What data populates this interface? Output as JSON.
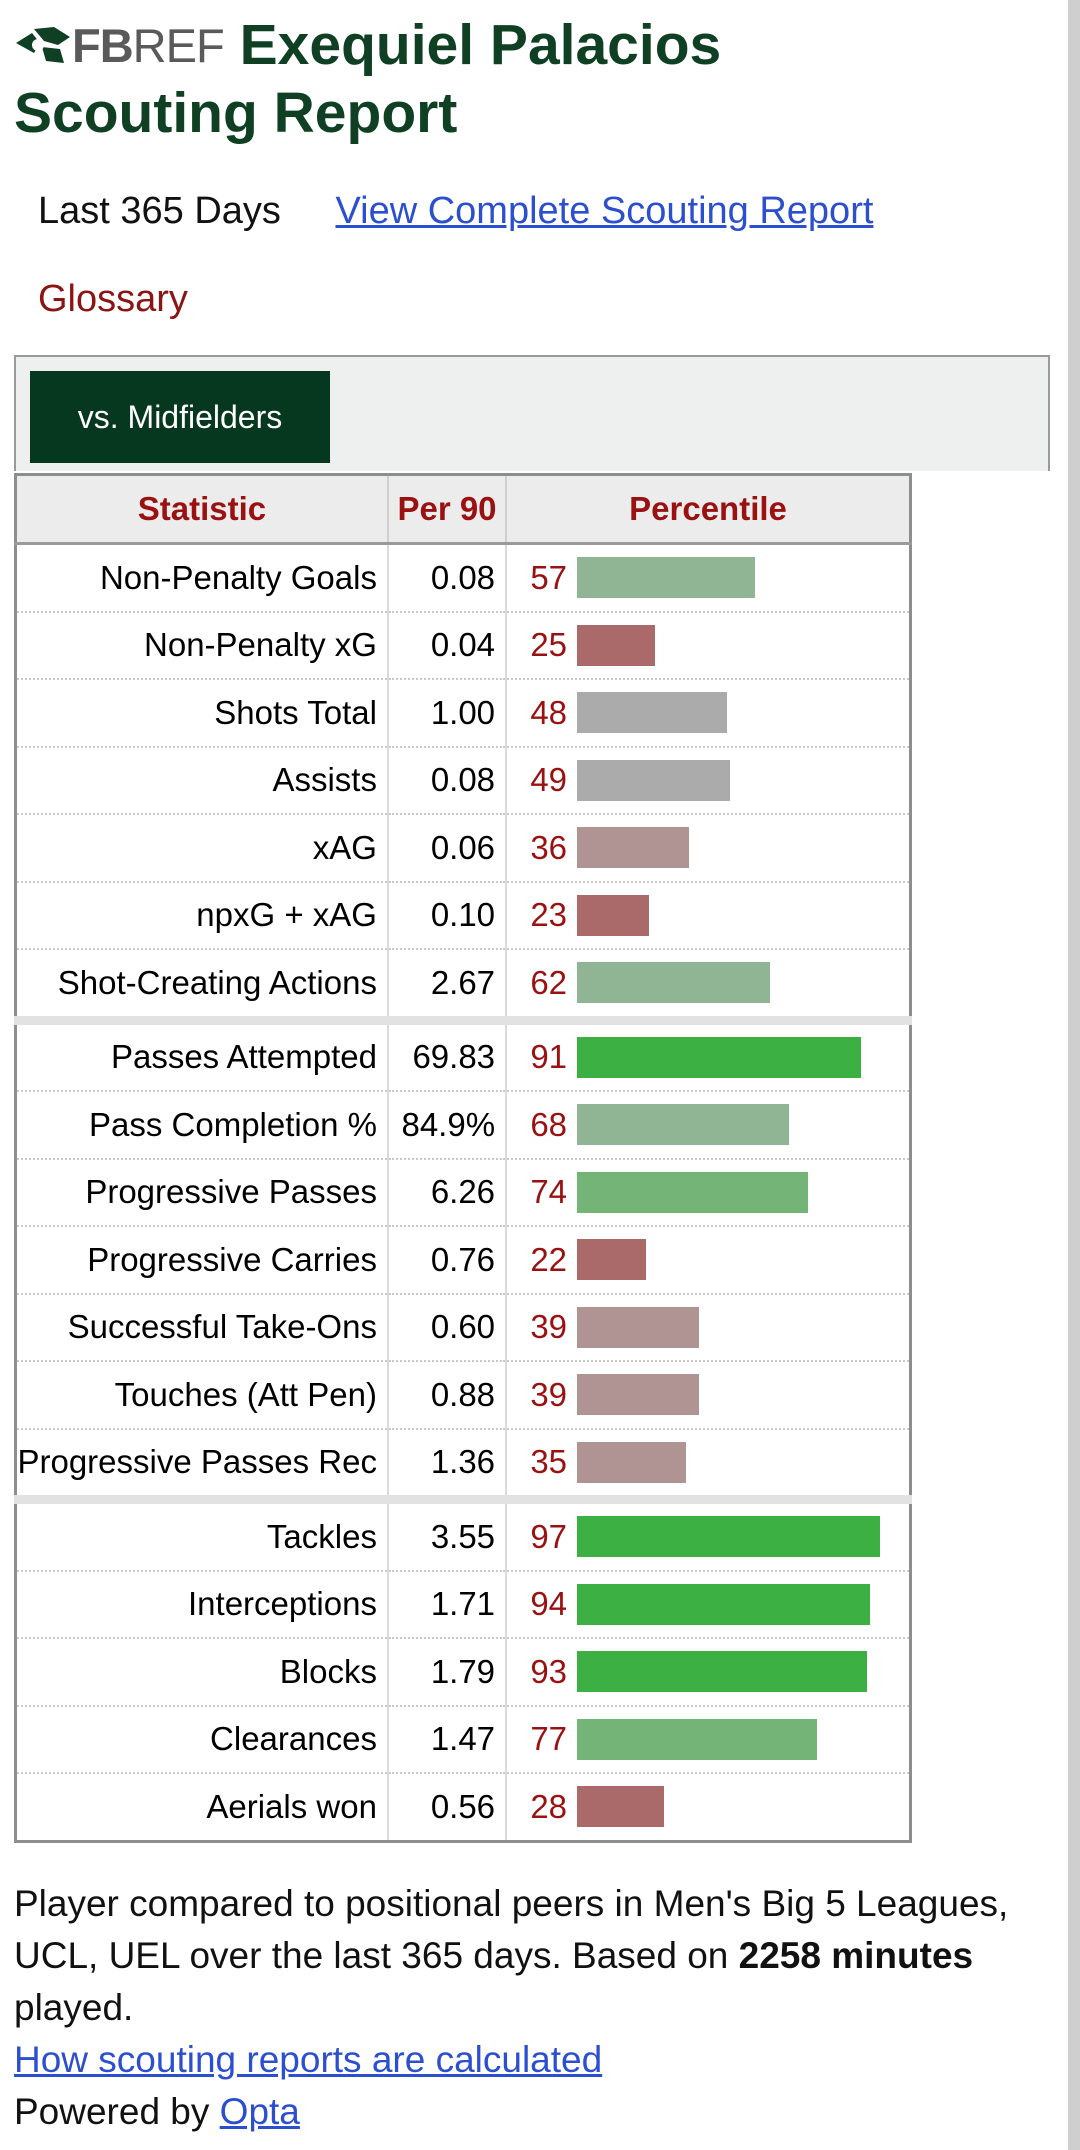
{
  "header": {
    "logo_fb": "FB",
    "logo_ref": "REF",
    "title_line1": "Exequiel Palacios",
    "title_line2": "Scouting Report"
  },
  "subnav": {
    "period": "Last 365 Days",
    "report_link": "View Complete Scouting Report",
    "glossary": "Glossary"
  },
  "filter": {
    "active_tab": "vs. Midfielders"
  },
  "table": {
    "headers": {
      "statistic": "Statistic",
      "per90": "Per 90",
      "percentile": "Percentile"
    },
    "rows": [
      {
        "stat": "Non-Penalty Goals",
        "per90": "0.08",
        "pct": 57
      },
      {
        "stat": "Non-Penalty xG",
        "per90": "0.04",
        "pct": 25
      },
      {
        "stat": "Shots Total",
        "per90": "1.00",
        "pct": 48
      },
      {
        "stat": "Assists",
        "per90": "0.08",
        "pct": 49
      },
      {
        "stat": "xAG",
        "per90": "0.06",
        "pct": 36
      },
      {
        "stat": "npxG + xAG",
        "per90": "0.10",
        "pct": 23
      },
      {
        "stat": "Shot-Creating Actions",
        "per90": "2.67",
        "pct": 62
      },
      {
        "stat": "Passes Attempted",
        "per90": "69.83",
        "pct": 91
      },
      {
        "stat": "Pass Completion %",
        "per90": "84.9%",
        "pct": 68
      },
      {
        "stat": "Progressive Passes",
        "per90": "6.26",
        "pct": 74
      },
      {
        "stat": "Progressive Carries",
        "per90": "0.76",
        "pct": 22
      },
      {
        "stat": "Successful Take-Ons",
        "per90": "0.60",
        "pct": 39
      },
      {
        "stat": "Touches (Att Pen)",
        "per90": "0.88",
        "pct": 39
      },
      {
        "stat": "Progressive Passes Rec",
        "per90": "1.36",
        "pct": 35
      },
      {
        "stat": "Tackles",
        "per90": "3.55",
        "pct": 97
      },
      {
        "stat": "Interceptions",
        "per90": "1.71",
        "pct": 94
      },
      {
        "stat": "Blocks",
        "per90": "1.79",
        "pct": 93
      },
      {
        "stat": "Clearances",
        "per90": "1.47",
        "pct": 77
      },
      {
        "stat": "Aerials won",
        "per90": "0.56",
        "pct": 28
      }
    ],
    "group_starts": [
      7,
      14
    ]
  },
  "footer": {
    "text_part1": "Player compared to positional peers in Men's Big 5 Leagues, UCL, UEL over the last 365 days. Based on",
    "minutes": "2258 minutes",
    "text_part2": "played.",
    "calc_link": "How scouting reports are calculated",
    "powered_by": "Powered by",
    "opta_link": "Opta"
  },
  "colors": {
    "title": "#0f4023",
    "tab_bg": "#06381f",
    "header_red": "#9a1111",
    "link": "#2b4fcf"
  }
}
